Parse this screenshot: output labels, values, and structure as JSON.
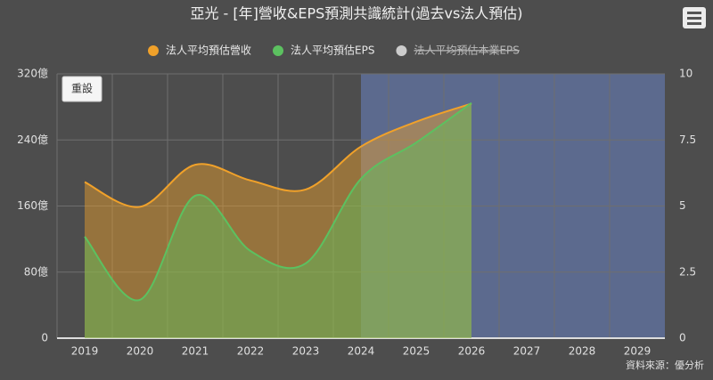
{
  "chart_data": {
    "type": "area",
    "title": "亞光 - [年]營收&EPS預測共識統計(過去vs法人預估)",
    "categories": [
      "2019",
      "2020",
      "2021",
      "2022",
      "2023",
      "2024",
      "2025",
      "2026",
      "2027",
      "2028",
      "2029"
    ],
    "series": [
      {
        "name": "法人平均預估營收",
        "color": "#f0a12a",
        "axis": "y",
        "values": [
          189,
          159,
          210,
          191,
          180,
          232,
          262,
          284,
          null,
          null,
          null
        ]
      },
      {
        "name": "法人平均預估EPS",
        "color": "#5cc160",
        "axis": "y2",
        "values": [
          3.84,
          1.45,
          5.39,
          3.3,
          2.83,
          6.03,
          7.4,
          8.9,
          null,
          null,
          null
        ]
      },
      {
        "name": "法人平均預估本業EPS",
        "color": "#cccccc",
        "axis": "y2",
        "hidden": true,
        "values": [
          null,
          null,
          null,
          null,
          null,
          null,
          null,
          null,
          null,
          null,
          null
        ]
      }
    ],
    "ylim": [
      0,
      320
    ],
    "yticks": [
      {
        "value": 0,
        "label": "0"
      },
      {
        "value": 80,
        "label": "80億"
      },
      {
        "value": 160,
        "label": "160億"
      },
      {
        "value": 240,
        "label": "240億"
      },
      {
        "value": 320,
        "label": "320億"
      }
    ],
    "y2lim": [
      0,
      10
    ],
    "y2ticks": [
      0,
      2.5,
      5,
      7.5,
      10
    ],
    "grid": true,
    "highlight_from": "2024",
    "highlight_color": "#5c6a8e",
    "reset_button": "重設",
    "source": "資料來源：優分析"
  }
}
